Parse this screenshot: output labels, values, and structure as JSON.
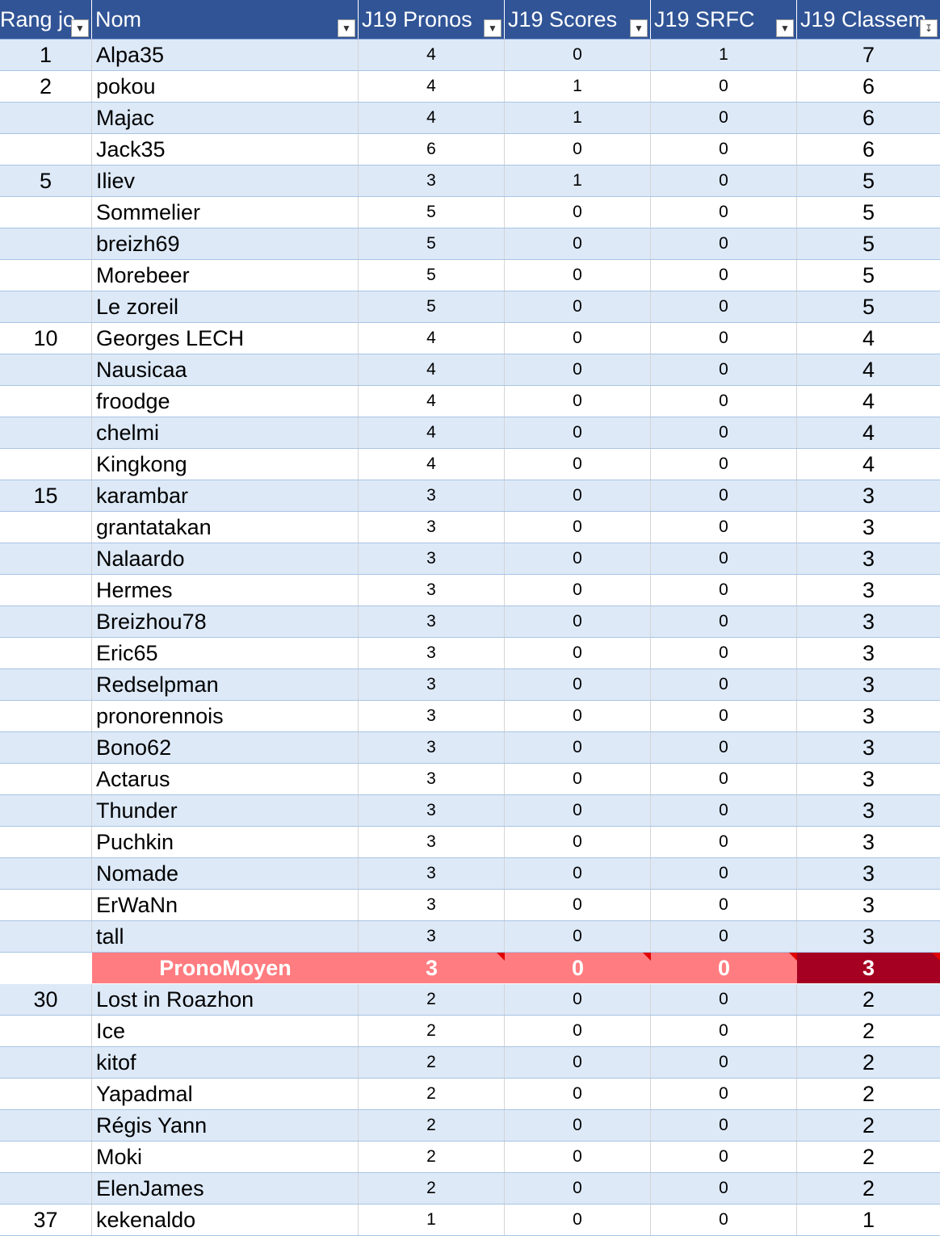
{
  "sheet": {
    "columns": [
      {
        "label": "Rang jo",
        "filter": "dropdown"
      },
      {
        "label": "Nom",
        "filter": "dropdown"
      },
      {
        "label": "J19 Pronos",
        "filter": "dropdown"
      },
      {
        "label": "J19 Scores",
        "filter": "dropdown"
      },
      {
        "label": "J19 SRFC",
        "filter": "dropdown"
      },
      {
        "label": "J19 Classem",
        "filter": "sorted-descending"
      }
    ],
    "rows": [
      {
        "rank": "1",
        "name": "Alpa35",
        "pronos": "4",
        "scores": "0",
        "srfc": "1",
        "classement": "7"
      },
      {
        "rank": "2",
        "name": "pokou",
        "pronos": "4",
        "scores": "1",
        "srfc": "0",
        "classement": "6"
      },
      {
        "rank": "",
        "name": "Majac",
        "pronos": "4",
        "scores": "1",
        "srfc": "0",
        "classement": "6"
      },
      {
        "rank": "",
        "name": "Jack35",
        "pronos": "6",
        "scores": "0",
        "srfc": "0",
        "classement": "6"
      },
      {
        "rank": "5",
        "name": "Iliev",
        "pronos": "3",
        "scores": "1",
        "srfc": "0",
        "classement": "5"
      },
      {
        "rank": "",
        "name": "Sommelier",
        "pronos": "5",
        "scores": "0",
        "srfc": "0",
        "classement": "5"
      },
      {
        "rank": "",
        "name": "breizh69",
        "pronos": "5",
        "scores": "0",
        "srfc": "0",
        "classement": "5"
      },
      {
        "rank": "",
        "name": "Morebeer",
        "pronos": "5",
        "scores": "0",
        "srfc": "0",
        "classement": "5"
      },
      {
        "rank": "",
        "name": "Le zoreil",
        "pronos": "5",
        "scores": "0",
        "srfc": "0",
        "classement": "5"
      },
      {
        "rank": "10",
        "name": "Georges LECH",
        "pronos": "4",
        "scores": "0",
        "srfc": "0",
        "classement": "4"
      },
      {
        "rank": "",
        "name": "Nausicaa",
        "pronos": "4",
        "scores": "0",
        "srfc": "0",
        "classement": "4"
      },
      {
        "rank": "",
        "name": "froodge",
        "pronos": "4",
        "scores": "0",
        "srfc": "0",
        "classement": "4"
      },
      {
        "rank": "",
        "name": "chelmi",
        "pronos": "4",
        "scores": "0",
        "srfc": "0",
        "classement": "4"
      },
      {
        "rank": "",
        "name": "Kingkong",
        "pronos": "4",
        "scores": "0",
        "srfc": "0",
        "classement": "4"
      },
      {
        "rank": "15",
        "name": "karambar",
        "pronos": "3",
        "scores": "0",
        "srfc": "0",
        "classement": "3"
      },
      {
        "rank": "",
        "name": "grantatakan",
        "pronos": "3",
        "scores": "0",
        "srfc": "0",
        "classement": "3"
      },
      {
        "rank": "",
        "name": "Nalaardo",
        "pronos": "3",
        "scores": "0",
        "srfc": "0",
        "classement": "3"
      },
      {
        "rank": "",
        "name": "Hermes",
        "pronos": "3",
        "scores": "0",
        "srfc": "0",
        "classement": "3"
      },
      {
        "rank": "",
        "name": "Breizhou78",
        "pronos": "3",
        "scores": "0",
        "srfc": "0",
        "classement": "3"
      },
      {
        "rank": "",
        "name": "Eric65",
        "pronos": "3",
        "scores": "0",
        "srfc": "0",
        "classement": "3"
      },
      {
        "rank": "",
        "name": "Redselpman",
        "pronos": "3",
        "scores": "0",
        "srfc": "0",
        "classement": "3"
      },
      {
        "rank": "",
        "name": "pronorennois",
        "pronos": "3",
        "scores": "0",
        "srfc": "0",
        "classement": "3"
      },
      {
        "rank": "",
        "name": "Bono62",
        "pronos": "3",
        "scores": "0",
        "srfc": "0",
        "classement": "3"
      },
      {
        "rank": "",
        "name": "Actarus",
        "pronos": "3",
        "scores": "0",
        "srfc": "0",
        "classement": "3"
      },
      {
        "rank": "",
        "name": "Thunder",
        "pronos": "3",
        "scores": "0",
        "srfc": "0",
        "classement": "3"
      },
      {
        "rank": "",
        "name": "Puchkin",
        "pronos": "3",
        "scores": "0",
        "srfc": "0",
        "classement": "3"
      },
      {
        "rank": "",
        "name": "Nomade",
        "pronos": "3",
        "scores": "0",
        "srfc": "0",
        "classement": "3"
      },
      {
        "rank": "",
        "name": "ErWaNn",
        "pronos": "3",
        "scores": "0",
        "srfc": "0",
        "classement": "3"
      },
      {
        "rank": "",
        "name": "tall",
        "pronos": "3",
        "scores": "0",
        "srfc": "0",
        "classement": "3"
      },
      {
        "rank": "",
        "name": "PronoMoyen",
        "pronos": "3",
        "scores": "0",
        "srfc": "0",
        "classement": "3",
        "highlight": true
      },
      {
        "rank": "30",
        "name": "Lost in Roazhon",
        "pronos": "2",
        "scores": "0",
        "srfc": "0",
        "classement": "2"
      },
      {
        "rank": "",
        "name": "Ice",
        "pronos": "2",
        "scores": "0",
        "srfc": "0",
        "classement": "2"
      },
      {
        "rank": "",
        "name": "kitof",
        "pronos": "2",
        "scores": "0",
        "srfc": "0",
        "classement": "2"
      },
      {
        "rank": "",
        "name": "Yapadmal",
        "pronos": "2",
        "scores": "0",
        "srfc": "0",
        "classement": "2"
      },
      {
        "rank": "",
        "name": "Régis Yann",
        "pronos": "2",
        "scores": "0",
        "srfc": "0",
        "classement": "2"
      },
      {
        "rank": "",
        "name": "Moki",
        "pronos": "2",
        "scores": "0",
        "srfc": "0",
        "classement": "2"
      },
      {
        "rank": "",
        "name": "ElenJames",
        "pronos": "2",
        "scores": "0",
        "srfc": "0",
        "classement": "2"
      },
      {
        "rank": "37",
        "name": "kekenaldo",
        "pronos": "1",
        "scores": "0",
        "srfc": "0",
        "classement": "1"
      }
    ],
    "colors": {
      "header_bg": "#305496",
      "band_bg": "#dde9f7",
      "highlight_bg": "#ff7c80",
      "highlight_total_bg": "#a50021",
      "comment_marker": "#e00000"
    },
    "icons": {
      "filter": "chevron-down-icon",
      "sorted": "sort-descending-icon",
      "comment": "comment-indicator-icon"
    }
  }
}
